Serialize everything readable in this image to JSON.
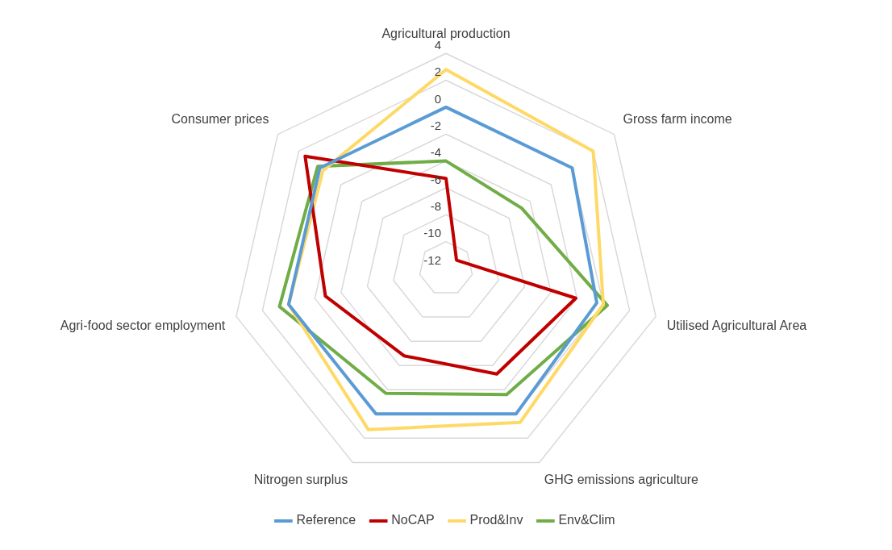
{
  "chart_data": {
    "type": "radar",
    "categories": [
      "Agricultural production",
      "Gross farm income",
      "Utilised Agricultural Area",
      "GHG emissions agriculture",
      "Nitrogen surplus",
      "Agri-food sector employment",
      "Consumer prices"
    ],
    "series": [
      {
        "name": "Reference",
        "color": "#5b9bd5",
        "values": [
          0,
          0,
          -0.5,
          0,
          0,
          0,
          0
        ]
      },
      {
        "name": "NoCAP",
        "color": "#c00000",
        "values": [
          -5.3,
          -11,
          -2.1,
          -3.3,
          -4.8,
          -2.8,
          1.4
        ]
      },
      {
        "name": "Prod&Inv",
        "color": "#ffd966",
        "values": [
          2.8,
          2,
          0,
          0.7,
          1.3,
          0,
          -0.3
        ]
      },
      {
        "name": "Env&Clim",
        "color": "#70ad47",
        "values": [
          -4,
          -4.8,
          0.3,
          -1.6,
          -1.7,
          0.7,
          0.2
        ]
      }
    ],
    "ylim": [
      -12,
      4
    ],
    "yticks": [
      -12,
      -10,
      -8,
      -6,
      -4,
      -2,
      0,
      2,
      4
    ],
    "grid": true,
    "legend": "bottom",
    "marker": "none",
    "line_style": "solid"
  }
}
